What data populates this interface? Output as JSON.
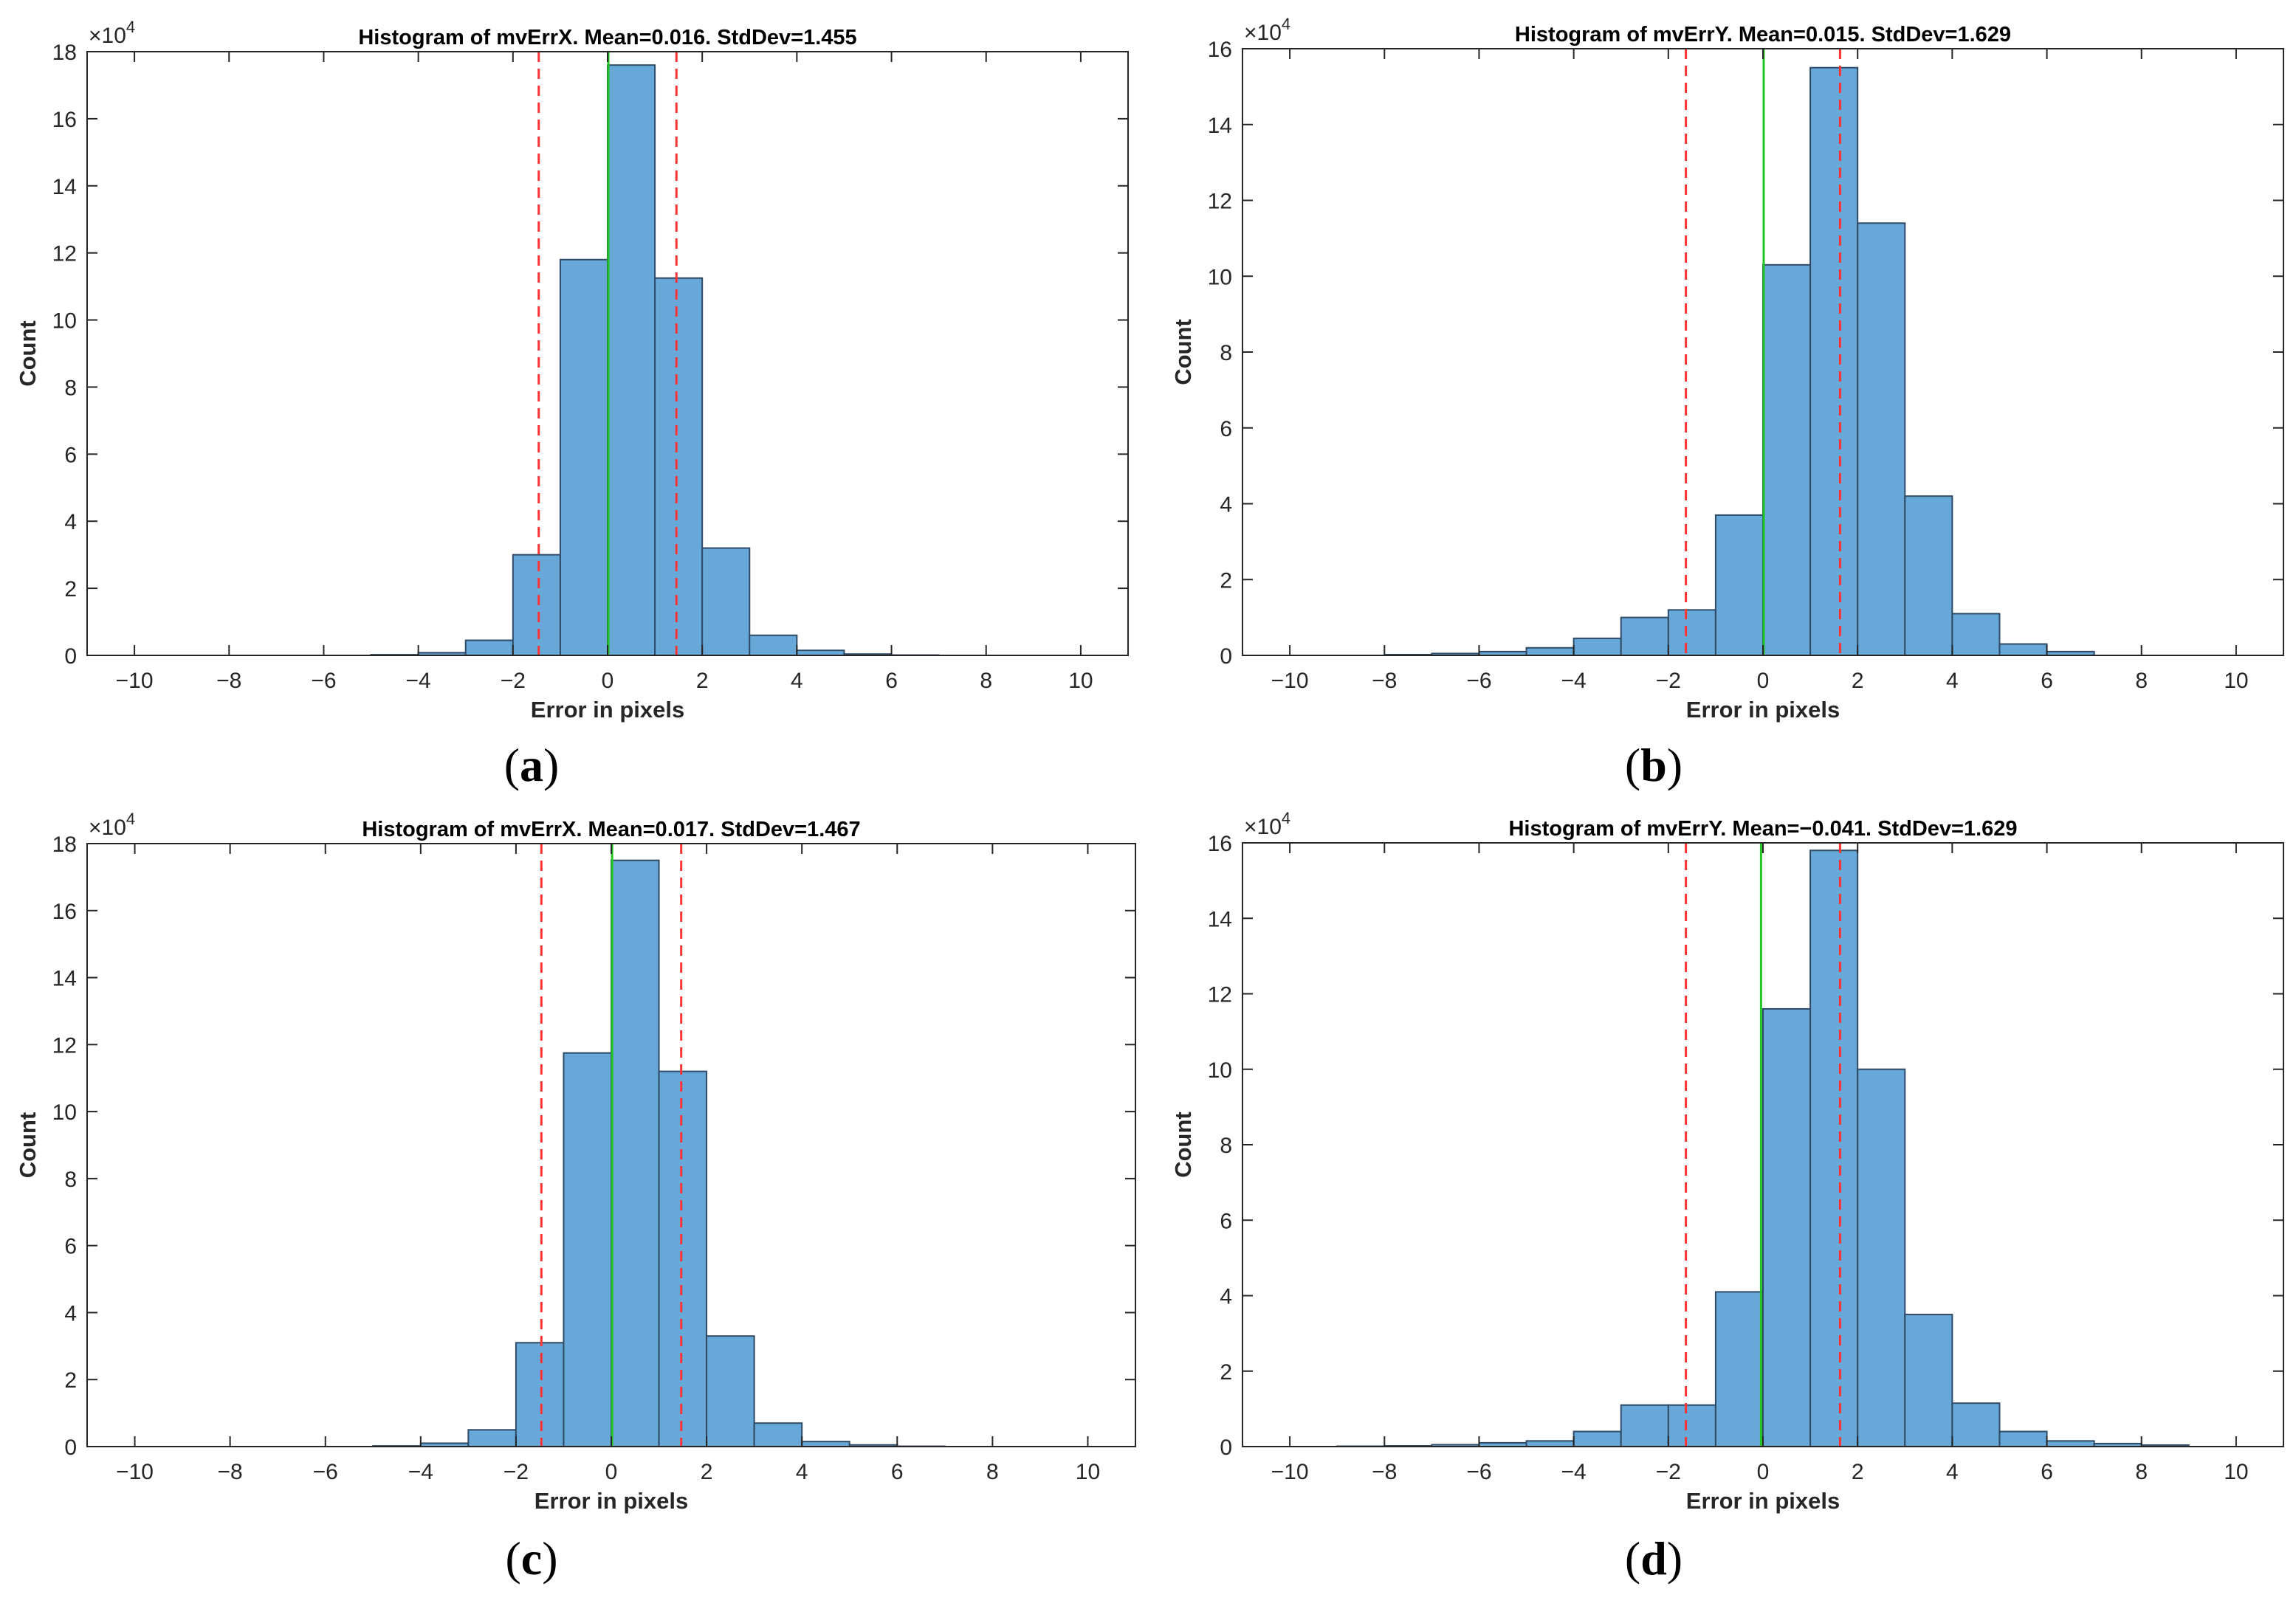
{
  "chart_data": [
    {
      "type": "bar",
      "panel_label": "a",
      "title": "Histogram of mvErrX.  Mean=0.016. StdDev=1.455",
      "xlabel": "Error in pixels",
      "ylabel": "Count",
      "y_exponent_label": "×10",
      "y_exponent": "4",
      "xlim": [
        -11,
        11
      ],
      "ylim": [
        0,
        18
      ],
      "xticks": [
        -10,
        -8,
        -6,
        -4,
        -2,
        0,
        2,
        4,
        6,
        8,
        10
      ],
      "yticks": [
        0,
        2,
        4,
        6,
        8,
        10,
        12,
        14,
        16,
        18
      ],
      "bin_edges": [
        -5,
        -4,
        -3,
        -2,
        -1,
        0,
        1,
        2,
        3,
        4,
        5,
        6,
        7
      ],
      "values": [
        0.02,
        0.08,
        0.45,
        3.0,
        11.8,
        17.6,
        11.25,
        3.2,
        0.6,
        0.15,
        0.04,
        0.01
      ],
      "mean_line": 0.016,
      "std_lines": [
        -1.455,
        1.455
      ],
      "colors": {
        "bar": "#67a8d8",
        "edge": "#2e4a66",
        "mean": "#21c421",
        "std": "#ff3333"
      }
    },
    {
      "type": "bar",
      "panel_label": "b",
      "title": "Histogram of mvErrY.  Mean=0.015. StdDev=1.629",
      "xlabel": "Error in pixels",
      "ylabel": "Count",
      "y_exponent_label": "×10",
      "y_exponent": "4",
      "xlim": [
        -11,
        11
      ],
      "ylim": [
        0,
        16
      ],
      "xticks": [
        -10,
        -8,
        -6,
        -4,
        -2,
        0,
        2,
        4,
        6,
        8,
        10
      ],
      "yticks": [
        0,
        2,
        4,
        6,
        8,
        10,
        12,
        14,
        16
      ],
      "bin_edges": [
        -8,
        -7,
        -6,
        -5,
        -4,
        -3,
        -2,
        -1,
        0,
        1,
        2,
        3,
        4,
        5,
        6,
        7
      ],
      "values": [
        0.02,
        0.05,
        0.1,
        0.2,
        0.45,
        1.0,
        1.2,
        3.7,
        10.3,
        15.5,
        11.4,
        4.2,
        1.1,
        0.3,
        0.1,
        0.03
      ],
      "mean_line": 0.015,
      "std_lines": [
        -1.629,
        1.629
      ],
      "colors": {
        "bar": "#67a8d8",
        "edge": "#2e4a66",
        "mean": "#21c421",
        "std": "#ff3333"
      }
    },
    {
      "type": "bar",
      "panel_label": "c",
      "title": "Histogram of mvErrX.  Mean=0.017. StdDev=1.467",
      "xlabel": "Error in pixels",
      "ylabel": "Count",
      "y_exponent_label": "×10",
      "y_exponent": "4",
      "xlim": [
        -11,
        11
      ],
      "ylim": [
        0,
        18
      ],
      "xticks": [
        -10,
        -8,
        -6,
        -4,
        -2,
        0,
        2,
        4,
        6,
        8,
        10
      ],
      "yticks": [
        0,
        2,
        4,
        6,
        8,
        10,
        12,
        14,
        16,
        18
      ],
      "bin_edges": [
        -5,
        -4,
        -3,
        -2,
        -1,
        0,
        1,
        2,
        3,
        4,
        5,
        6,
        7
      ],
      "values": [
        0.02,
        0.1,
        0.5,
        3.1,
        11.75,
        17.5,
        11.2,
        3.3,
        0.7,
        0.15,
        0.05,
        0.01
      ],
      "mean_line": 0.017,
      "std_lines": [
        -1.467,
        1.467
      ],
      "colors": {
        "bar": "#67a8d8",
        "edge": "#2e4a66",
        "mean": "#21c421",
        "std": "#ff3333"
      }
    },
    {
      "type": "bar",
      "panel_label": "d",
      "title": "Histogram of mvErrY.  Mean=−0.041. StdDev=1.629",
      "xlabel": "Error in pixels",
      "ylabel": "Count",
      "y_exponent_label": "×10",
      "y_exponent": "4",
      "xlim": [
        -11,
        11
      ],
      "ylim": [
        0,
        16
      ],
      "xticks": [
        -10,
        -8,
        -6,
        -4,
        -2,
        0,
        2,
        4,
        6,
        8,
        10
      ],
      "yticks": [
        0,
        2,
        4,
        6,
        8,
        10,
        12,
        14,
        16
      ],
      "bin_edges": [
        -9,
        -8,
        -7,
        -6,
        -5,
        -4,
        -3,
        -2,
        -1,
        0,
        1,
        2,
        3,
        4,
        5,
        6,
        7,
        8,
        9
      ],
      "values": [
        0.01,
        0.02,
        0.05,
        0.1,
        0.15,
        0.4,
        1.1,
        1.1,
        4.1,
        11.6,
        15.8,
        10.0,
        3.5,
        1.15,
        0.4,
        0.15,
        0.08,
        0.04
      ],
      "mean_line": -0.041,
      "std_lines": [
        -1.629,
        1.629
      ],
      "colors": {
        "bar": "#67a8d8",
        "edge": "#2e4a66",
        "mean": "#21c421",
        "std": "#ff3333"
      }
    }
  ]
}
